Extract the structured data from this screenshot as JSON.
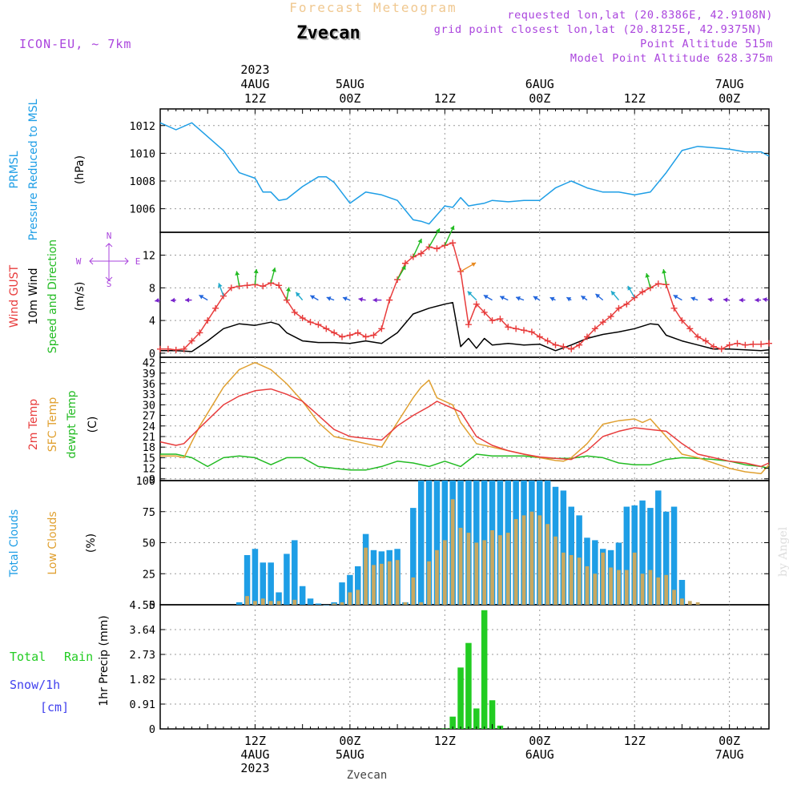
{
  "header": {
    "title": "Forecast Meteogram",
    "location": "Zvecan",
    "model": "ICON-EU, ~ 7km",
    "requested": "requested lon,lat (20.8386E, 42.9108N)",
    "grid_point": "grid point closest lon,lat (20.8125E, 42.9375N)",
    "point_alt": "Point Altitude 515m",
    "model_alt": "Model Point Altitude 628.375m",
    "credit": "by Angel",
    "footer_location": "Zvecan"
  },
  "time_axis": {
    "top_labels": [
      {
        "t": 12,
        "lines": [
          "2023",
          "4AUG",
          "12Z"
        ]
      },
      {
        "t": 24,
        "lines": [
          "5AUG",
          "00Z"
        ]
      },
      {
        "t": 36,
        "lines": [
          "12Z"
        ]
      },
      {
        "t": 48,
        "lines": [
          "6AUG",
          "00Z"
        ]
      },
      {
        "t": 60,
        "lines": [
          "12Z"
        ]
      },
      {
        "t": 72,
        "lines": [
          "7AUG",
          "00Z"
        ]
      }
    ],
    "bottom_labels": [
      {
        "t": 12,
        "lines": [
          "12Z",
          "4AUG",
          "2023"
        ]
      },
      {
        "t": 24,
        "lines": [
          "00Z",
          "5AUG"
        ]
      },
      {
        "t": 36,
        "lines": [
          "12Z"
        ]
      },
      {
        "t": 48,
        "lines": [
          "00Z",
          "6AUG"
        ]
      },
      {
        "t": 60,
        "lines": [
          "12Z"
        ]
      },
      {
        "t": 72,
        "lines": [
          "00Z",
          "7AUG"
        ]
      }
    ]
  },
  "colors": {
    "pressure": "#1e9ee6",
    "gust": "#e83c3c",
    "wind": "#000000",
    "direction": "#22bb22",
    "temp": "#e83c3c",
    "sfc": "#e0a030",
    "dewpt": "#22bb22",
    "total_clouds": "#1e9ee6",
    "low_clouds": "#c8a860",
    "rain": "#22cc22",
    "snow": "#4040ee",
    "compass": "#aa44dd"
  },
  "chart_data": [
    {
      "type": "line",
      "panel": "pressure",
      "ylabel": [
        "PRMSL",
        "Pressure Reduced to MSL",
        "(hPa)"
      ],
      "ylim": [
        1004.3,
        1013.2
      ],
      "yticks": [
        "1006",
        "1008",
        "1010",
        "1012"
      ],
      "series": [
        {
          "name": "PRMSL",
          "x": [
            0,
            2,
            4,
            6,
            8,
            10,
            12,
            13,
            14,
            15,
            16,
            18,
            20,
            21,
            22,
            24,
            26,
            28,
            30,
            32,
            33,
            34,
            36,
            37,
            38,
            39,
            40,
            41,
            42,
            44,
            46,
            48,
            50,
            52,
            54,
            56,
            58,
            60,
            62,
            64,
            66,
            68,
            70,
            72,
            74,
            76,
            77
          ],
          "values": [
            1012.2,
            1011.7,
            1012.2,
            1011.2,
            1010.2,
            1008.6,
            1008.2,
            1007.2,
            1007.2,
            1006.6,
            1006.7,
            1007.6,
            1008.3,
            1008.3,
            1007.9,
            1006.4,
            1007.2,
            1007.0,
            1006.6,
            1005.2,
            1005.1,
            1004.9,
            1006.2,
            1006.1,
            1006.8,
            1006.2,
            1006.3,
            1006.4,
            1006.6,
            1006.5,
            1006.6,
            1006.6,
            1007.5,
            1008.0,
            1007.5,
            1007.2,
            1007.2,
            1007.0,
            1007.2,
            1008.6,
            1010.2,
            1010.5,
            1010.4,
            1010.3,
            1010.1,
            1010.1,
            1009.8
          ]
        }
      ]
    },
    {
      "type": "line",
      "panel": "wind",
      "ylabel": [
        "Wind GUST",
        "10m Wind",
        "Speed and Direction",
        "(m/s)"
      ],
      "ylim": [
        -0.5,
        14.8
      ],
      "yticks": [
        "0",
        "4",
        "8",
        "12"
      ],
      "compass": {
        "n": "N",
        "s": "S",
        "w": "W",
        "e": "E"
      },
      "series": [
        {
          "name": "Wind GUST",
          "x": [
            0,
            1,
            2,
            3,
            4,
            5,
            6,
            7,
            8,
            9,
            10,
            11,
            12,
            13,
            14,
            15,
            16,
            17,
            18,
            19,
            20,
            21,
            22,
            23,
            24,
            25,
            26,
            27,
            28,
            29,
            30,
            31,
            32,
            33,
            34,
            35,
            36,
            37,
            38,
            39,
            40,
            41,
            42,
            43,
            44,
            45,
            46,
            47,
            48,
            49,
            50,
            51,
            52,
            53,
            54,
            55,
            56,
            57,
            58,
            59,
            60,
            61,
            62,
            63,
            64,
            65,
            66,
            67,
            68,
            69,
            70,
            71,
            72,
            73,
            74,
            75,
            76,
            77
          ],
          "values": [
            0.5,
            0.5,
            0.4,
            0.5,
            1.5,
            2.5,
            4,
            5.5,
            7,
            8,
            8.2,
            8.3,
            8.4,
            8.2,
            8.6,
            8.3,
            6.5,
            5,
            4.3,
            3.8,
            3.5,
            3,
            2.5,
            2,
            2.2,
            2.5,
            2,
            2.2,
            3,
            6.5,
            9,
            11,
            11.8,
            12.2,
            13,
            12.8,
            13.2,
            13.5,
            10,
            3.5,
            6,
            5,
            4,
            4.2,
            3.2,
            3.0,
            2.8,
            2.6,
            2,
            1.5,
            1.0,
            0.8,
            0.5,
            1.0,
            2,
            3,
            3.8,
            4.5,
            5.5,
            6,
            6.8,
            7.5,
            8.0,
            8.5,
            8.4,
            5.5,
            4,
            3,
            2,
            1.5,
            0.8,
            0.5,
            1.0,
            1.2,
            1.0,
            1.1,
            1.1,
            1.2
          ]
        },
        {
          "name": "10m Wind",
          "x": [
            0,
            2,
            4,
            6,
            8,
            10,
            12,
            14,
            15,
            16,
            18,
            20,
            22,
            24,
            26,
            28,
            30,
            32,
            34,
            36,
            37,
            38,
            39,
            40,
            41,
            42,
            44,
            46,
            48,
            50,
            52,
            54,
            56,
            58,
            60,
            62,
            63,
            64,
            66,
            68,
            70,
            72,
            74,
            76,
            77
          ],
          "values": [
            0.3,
            0.3,
            0.2,
            1.5,
            3,
            3.6,
            3.4,
            3.8,
            3.5,
            2.5,
            1.5,
            1.3,
            1.3,
            1.2,
            1.5,
            1.2,
            2.5,
            4.8,
            5.5,
            6.0,
            6.2,
            0.8,
            1.8,
            0.6,
            1.8,
            1.0,
            1.2,
            1.0,
            1.1,
            0.3,
            1.0,
            1.8,
            2.3,
            2.6,
            3,
            3.6,
            3.5,
            2.2,
            1.5,
            1.0,
            0.5,
            0.5,
            0.4,
            0.3,
            0.4
          ]
        },
        {
          "name": "direction",
          "x": [
            0,
            2,
            4,
            6,
            8,
            10,
            12,
            14,
            16,
            18,
            20,
            22,
            24,
            26,
            28,
            30,
            32,
            34,
            36,
            38,
            40,
            42,
            44,
            46,
            48,
            50,
            52,
            54,
            56,
            58,
            60,
            62,
            64,
            66,
            68,
            70,
            72,
            74,
            76,
            77
          ],
          "values": [
            260,
            265,
            270,
            300,
            340,
            350,
            5,
            15,
            10,
            320,
            300,
            290,
            290,
            280,
            270,
            30,
            25,
            30,
            25,
            60,
            315,
            300,
            295,
            290,
            300,
            295,
            300,
            305,
            310,
            320,
            330,
            345,
            350,
            300,
            290,
            280,
            275,
            270,
            270,
            280
          ]
        }
      ]
    },
    {
      "type": "line",
      "panel": "temperature",
      "ylabel": [
        "2m Temp",
        "SFC Temp",
        "dewpt Temp",
        "(C)"
      ],
      "ylim": [
        8.5,
        43.5
      ],
      "yticks": [
        "9",
        "12",
        "15",
        "18",
        "21",
        "24",
        "27",
        "30",
        "33",
        "36",
        "39",
        "42"
      ],
      "series": [
        {
          "name": "2m Temp",
          "x": [
            0,
            2,
            3,
            5,
            8,
            10,
            12,
            14,
            16,
            18,
            20,
            22,
            24,
            26,
            28,
            30,
            32,
            34,
            35,
            36,
            37,
            38,
            40,
            42,
            44,
            46,
            48,
            50,
            52,
            54,
            56,
            58,
            60,
            62,
            64,
            66,
            68,
            70,
            72,
            74,
            76,
            77
          ],
          "values": [
            19.5,
            18.5,
            19,
            23.5,
            30,
            32.5,
            34,
            34.5,
            33,
            31,
            27,
            23,
            21,
            20.5,
            20,
            24,
            27,
            29.5,
            31,
            30,
            29,
            28,
            21,
            18.5,
            17,
            16,
            15.2,
            14.8,
            14.5,
            17,
            21,
            22.5,
            23.5,
            23,
            22.5,
            19,
            16,
            15,
            14,
            13.5,
            12.5,
            13.5
          ]
        },
        {
          "name": "SFC Temp",
          "x": [
            0,
            2,
            3,
            5,
            8,
            10,
            11,
            12,
            14,
            16,
            18,
            20,
            22,
            24,
            26,
            28,
            30,
            32,
            33,
            34,
            35,
            36,
            37,
            38,
            40,
            42,
            44,
            46,
            48,
            50,
            51,
            52,
            54,
            56,
            58,
            60,
            61,
            62,
            64,
            66,
            68,
            70,
            72,
            74,
            76,
            77
          ],
          "values": [
            15.5,
            15.5,
            15,
            24,
            35,
            40,
            41,
            42,
            40,
            36,
            31,
            25,
            21,
            20,
            19,
            18,
            25,
            32,
            35,
            37,
            32,
            31,
            30,
            25,
            19,
            18,
            17,
            16,
            15,
            14.2,
            14,
            15,
            19,
            24.5,
            25.5,
            26,
            25,
            26,
            21,
            16,
            15,
            13.5,
            12,
            11,
            10.5,
            13
          ]
        },
        {
          "name": "dewpt Temp",
          "x": [
            0,
            2,
            4,
            6,
            8,
            10,
            12,
            14,
            16,
            18,
            20,
            22,
            24,
            26,
            28,
            30,
            32,
            34,
            36,
            38,
            40,
            42,
            44,
            46,
            48,
            50,
            52,
            54,
            56,
            58,
            60,
            62,
            64,
            66,
            68,
            70,
            72,
            74,
            76,
            77
          ],
          "values": [
            16,
            16,
            15,
            12.5,
            15,
            15.5,
            15,
            13,
            15,
            15,
            12.5,
            12,
            11.5,
            11.5,
            12.5,
            14,
            13.5,
            12.5,
            14,
            12.5,
            16,
            15.5,
            15.5,
            15.5,
            15,
            14.8,
            14.8,
            15.5,
            15,
            13.5,
            13,
            13,
            14.5,
            15,
            14.8,
            14.5,
            14,
            13,
            12.5,
            12
          ]
        }
      ]
    },
    {
      "type": "bar",
      "panel": "clouds",
      "ylabel": [
        "Total Clouds",
        "Low Clouds",
        "(%)"
      ],
      "ylim": [
        0,
        100
      ],
      "yticks": [
        "0",
        "25",
        "50",
        "75",
        "100"
      ],
      "series": [
        {
          "name": "Total Clouds",
          "x": [
            10,
            11,
            12,
            13,
            14,
            15,
            16,
            17,
            18,
            19,
            20,
            21,
            22,
            23,
            24,
            25,
            26,
            27,
            28,
            29,
            30,
            31,
            32,
            33,
            34,
            35,
            36,
            37,
            38,
            39,
            40,
            41,
            42,
            43,
            44,
            45,
            46,
            47,
            48,
            49,
            50,
            51,
            52,
            53,
            54,
            55,
            56,
            57,
            58,
            59,
            60,
            61,
            62,
            63,
            64,
            65,
            66
          ],
          "values": [
            2,
            40,
            45,
            34,
            34,
            10,
            41,
            52,
            15,
            5,
            1,
            0,
            2,
            18,
            24,
            31,
            57,
            44,
            43,
            44,
            45,
            2,
            78,
            100,
            100,
            100,
            100,
            100,
            100,
            100,
            100,
            100,
            100,
            100,
            100,
            100,
            100,
            100,
            100,
            100,
            95,
            92,
            79,
            72,
            54,
            52,
            45,
            44,
            50,
            79,
            80,
            84,
            78,
            92,
            75,
            79,
            20
          ]
        },
        {
          "name": "Low Clouds",
          "x": [
            11,
            12,
            13,
            14,
            15,
            17,
            22,
            23,
            24,
            25,
            26,
            27,
            28,
            29,
            30,
            31,
            32,
            33,
            34,
            35,
            36,
            37,
            38,
            39,
            40,
            41,
            42,
            43,
            44,
            45,
            46,
            47,
            48,
            49,
            50,
            51,
            52,
            53,
            54,
            55,
            56,
            57,
            58,
            59,
            60,
            61,
            62,
            63,
            64,
            65,
            66,
            67,
            68
          ],
          "values": [
            7,
            3,
            5,
            3,
            3,
            4,
            1,
            2,
            10,
            12,
            46,
            32,
            33,
            35,
            36,
            2,
            22,
            2,
            35,
            44,
            52,
            85,
            62,
            58,
            50,
            52,
            60,
            56,
            58,
            69,
            72,
            75,
            72,
            65,
            55,
            42,
            40,
            38,
            31,
            25,
            42,
            30,
            28,
            28,
            42,
            25,
            28,
            22,
            24,
            12,
            5,
            3,
            2
          ]
        }
      ]
    },
    {
      "type": "bar",
      "panel": "precip",
      "ylabel": [
        "1hr Precip (mm)"
      ],
      "left_labels": [
        "Total",
        "Rain",
        "Snow/1h",
        "[cm]"
      ],
      "ylim": [
        0,
        4.55
      ],
      "yticks": [
        "0",
        "0.91",
        "1.82",
        "2.73",
        "3.64",
        "4.55"
      ],
      "series": [
        {
          "name": "Rain",
          "x": [
            36,
            37,
            38,
            39,
            40,
            41,
            42,
            43
          ],
          "values": [
            0.02,
            0.45,
            2.25,
            3.15,
            0.75,
            4.35,
            1.05,
            0.12
          ]
        }
      ]
    }
  ]
}
